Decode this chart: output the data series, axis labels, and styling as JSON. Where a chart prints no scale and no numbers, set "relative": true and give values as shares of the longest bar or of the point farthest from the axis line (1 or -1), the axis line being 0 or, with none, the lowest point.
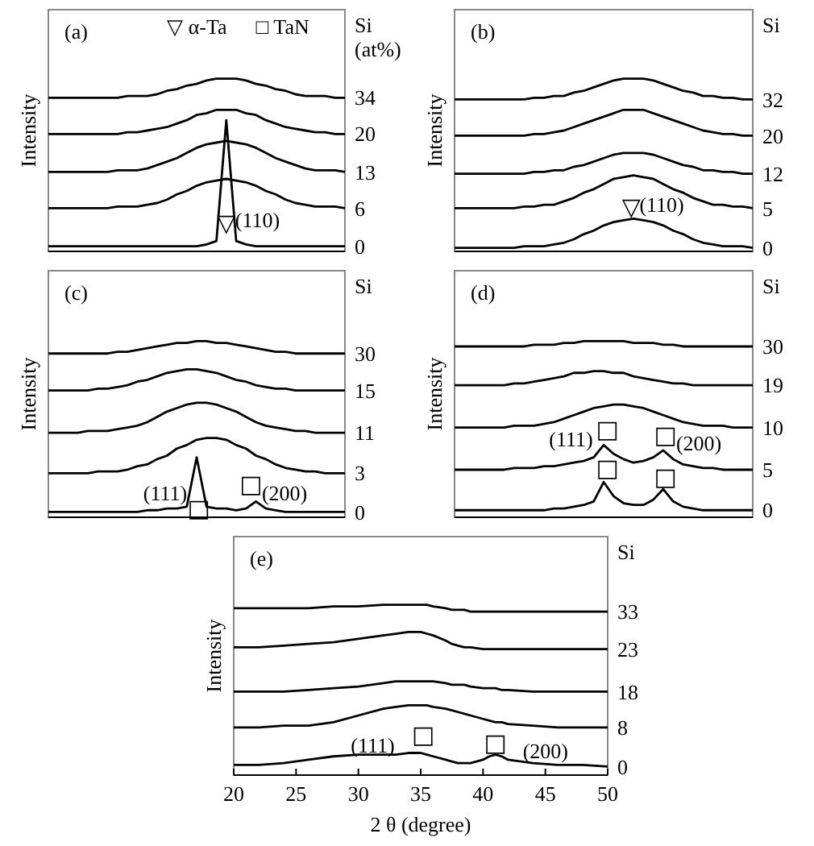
{
  "chart_data": [
    {
      "type": "line",
      "title": "(a)",
      "ylabel": "Intensity",
      "legend_title": "Si (at%)",
      "relative": true,
      "tick_labels": false,
      "categories": [
        null,
        null,
        null,
        null,
        null,
        null,
        null,
        null,
        null,
        null,
        null,
        null,
        null,
        null,
        null,
        null,
        null,
        null,
        null,
        null,
        null,
        null,
        null,
        null,
        null,
        null,
        null,
        null,
        null,
        null,
        null
      ],
      "series": [
        {
          "name": "0",
          "color": "#000000",
          "values": [
            0.03,
            0.03,
            0.03,
            0.03,
            0.03,
            0.03,
            0.03,
            0.03,
            0.03,
            0.03,
            0.03,
            0.03,
            0.03,
            0.03,
            0.03,
            0.03,
            0.04,
            0.06,
            0.76,
            0.06,
            0.04,
            0.03,
            0.03,
            0.03,
            0.03,
            0.03,
            0.03,
            0.03,
            0.03,
            0.03,
            0.03
          ]
        },
        {
          "name": "6",
          "color": "#000000",
          "values": [
            0.25,
            0.25,
            0.25,
            0.25,
            0.25,
            0.25,
            0.25,
            0.26,
            0.26,
            0.26,
            0.27,
            0.28,
            0.3,
            0.33,
            0.35,
            0.38,
            0.4,
            0.41,
            0.42,
            0.41,
            0.4,
            0.38,
            0.35,
            0.33,
            0.3,
            0.28,
            0.27,
            0.26,
            0.26,
            0.26,
            0.25
          ]
        },
        {
          "name": "13",
          "color": "#000000",
          "values": [
            0.46,
            0.46,
            0.46,
            0.46,
            0.46,
            0.46,
            0.46,
            0.47,
            0.47,
            0.47,
            0.48,
            0.5,
            0.52,
            0.54,
            0.57,
            0.6,
            0.62,
            0.63,
            0.64,
            0.63,
            0.62,
            0.6,
            0.57,
            0.54,
            0.52,
            0.5,
            0.48,
            0.47,
            0.47,
            0.47,
            0.46
          ]
        },
        {
          "name": "20",
          "color": "#000000",
          "values": [
            0.68,
            0.68,
            0.68,
            0.68,
            0.68,
            0.68,
            0.68,
            0.68,
            0.69,
            0.69,
            0.7,
            0.71,
            0.72,
            0.74,
            0.76,
            0.79,
            0.8,
            0.82,
            0.82,
            0.82,
            0.8,
            0.79,
            0.76,
            0.74,
            0.72,
            0.71,
            0.7,
            0.69,
            0.69,
            0.68,
            0.68
          ]
        },
        {
          "name": "34",
          "color": "#000000",
          "values": [
            0.89,
            0.89,
            0.89,
            0.89,
            0.89,
            0.89,
            0.89,
            0.89,
            0.9,
            0.9,
            0.9,
            0.91,
            0.93,
            0.94,
            0.96,
            0.97,
            0.99,
            1.0,
            1.0,
            1.0,
            0.99,
            0.97,
            0.96,
            0.94,
            0.93,
            0.91,
            0.9,
            0.9,
            0.9,
            0.89,
            0.89
          ]
        }
      ],
      "annotations": [
        "▽ α-Ta",
        "□ TaN",
        "▽",
        "(110)"
      ]
    },
    {
      "type": "line",
      "title": "(b)",
      "ylabel": "Intensity",
      "legend_title": "Si",
      "relative": true,
      "tick_labels": false,
      "categories": [
        null,
        null,
        null,
        null,
        null,
        null,
        null,
        null,
        null,
        null,
        null,
        null,
        null,
        null,
        null,
        null,
        null,
        null,
        null,
        null,
        null,
        null,
        null,
        null,
        null,
        null,
        null,
        null,
        null,
        null,
        null
      ],
      "series": [
        {
          "name": "0",
          "color": "#000000",
          "values": [
            0.02,
            0.02,
            0.02,
            0.02,
            0.02,
            0.02,
            0.02,
            0.03,
            0.03,
            0.03,
            0.04,
            0.05,
            0.07,
            0.1,
            0.12,
            0.15,
            0.17,
            0.18,
            0.19,
            0.18,
            0.17,
            0.15,
            0.12,
            0.1,
            0.07,
            0.05,
            0.04,
            0.03,
            0.03,
            0.03,
            0.02
          ]
        },
        {
          "name": "5",
          "color": "#000000",
          "values": [
            0.25,
            0.25,
            0.25,
            0.25,
            0.25,
            0.25,
            0.25,
            0.26,
            0.26,
            0.27,
            0.27,
            0.29,
            0.31,
            0.34,
            0.36,
            0.39,
            0.42,
            0.43,
            0.44,
            0.43,
            0.42,
            0.39,
            0.36,
            0.34,
            0.31,
            0.29,
            0.27,
            0.27,
            0.26,
            0.26,
            0.25
          ]
        },
        {
          "name": "12",
          "color": "#000000",
          "values": [
            0.45,
            0.45,
            0.45,
            0.45,
            0.45,
            0.45,
            0.45,
            0.45,
            0.46,
            0.46,
            0.47,
            0.47,
            0.49,
            0.5,
            0.52,
            0.54,
            0.56,
            0.57,
            0.57,
            0.57,
            0.56,
            0.54,
            0.52,
            0.5,
            0.49,
            0.47,
            0.47,
            0.46,
            0.46,
            0.45,
            0.45
          ]
        },
        {
          "name": "20",
          "color": "#000000",
          "values": [
            0.67,
            0.67,
            0.67,
            0.67,
            0.67,
            0.67,
            0.67,
            0.67,
            0.68,
            0.68,
            0.69,
            0.7,
            0.72,
            0.74,
            0.76,
            0.78,
            0.8,
            0.82,
            0.82,
            0.82,
            0.8,
            0.78,
            0.76,
            0.74,
            0.72,
            0.7,
            0.69,
            0.68,
            0.68,
            0.67,
            0.67
          ]
        },
        {
          "name": "32",
          "color": "#000000",
          "values": [
            0.88,
            0.88,
            0.88,
            0.88,
            0.88,
            0.88,
            0.88,
            0.88,
            0.89,
            0.89,
            0.9,
            0.9,
            0.92,
            0.93,
            0.95,
            0.97,
            0.99,
            1.0,
            1.0,
            1.0,
            0.99,
            0.97,
            0.95,
            0.93,
            0.92,
            0.9,
            0.9,
            0.89,
            0.89,
            0.88,
            0.88
          ]
        }
      ],
      "annotations": [
        "▽",
        "(110)"
      ]
    },
    {
      "type": "line",
      "title": "(c)",
      "ylabel": "Intensity",
      "legend_title": "Si",
      "relative": true,
      "tick_labels": false,
      "categories": [
        null,
        null,
        null,
        null,
        null,
        null,
        null,
        null,
        null,
        null,
        null,
        null,
        null,
        null,
        null,
        null,
        null,
        null,
        null,
        null,
        null,
        null,
        null,
        null,
        null,
        null,
        null,
        null,
        null,
        null,
        null
      ],
      "series": [
        {
          "name": "0",
          "color": "#000000",
          "values": [
            0.03,
            0.03,
            0.03,
            0.03,
            0.03,
            0.03,
            0.03,
            0.03,
            0.03,
            0.03,
            0.04,
            0.04,
            0.05,
            0.05,
            0.06,
            0.34,
            0.06,
            0.05,
            0.05,
            0.04,
            0.05,
            0.09,
            0.05,
            0.04,
            0.03,
            0.03,
            0.03,
            0.03,
            0.03,
            0.03,
            0.03
          ]
        },
        {
          "name": "3",
          "color": "#000000",
          "values": [
            0.25,
            0.25,
            0.25,
            0.25,
            0.25,
            0.26,
            0.26,
            0.26,
            0.27,
            0.29,
            0.3,
            0.33,
            0.35,
            0.39,
            0.41,
            0.44,
            0.45,
            0.45,
            0.44,
            0.41,
            0.39,
            0.35,
            0.33,
            0.3,
            0.28,
            0.27,
            0.26,
            0.26,
            0.25,
            0.25,
            0.25
          ]
        },
        {
          "name": "11",
          "color": "#000000",
          "values": [
            0.48,
            0.48,
            0.48,
            0.48,
            0.49,
            0.49,
            0.49,
            0.5,
            0.51,
            0.52,
            0.54,
            0.57,
            0.6,
            0.62,
            0.64,
            0.65,
            0.65,
            0.64,
            0.62,
            0.6,
            0.57,
            0.54,
            0.52,
            0.51,
            0.5,
            0.49,
            0.49,
            0.48,
            0.48,
            0.48,
            0.48
          ]
        },
        {
          "name": "15",
          "color": "#000000",
          "values": [
            0.72,
            0.72,
            0.72,
            0.72,
            0.72,
            0.73,
            0.73,
            0.74,
            0.75,
            0.77,
            0.78,
            0.8,
            0.82,
            0.83,
            0.84,
            0.84,
            0.83,
            0.82,
            0.8,
            0.78,
            0.77,
            0.75,
            0.74,
            0.73,
            0.73,
            0.72,
            0.72,
            0.72,
            0.72,
            0.72,
            0.72
          ]
        },
        {
          "name": "30",
          "color": "#000000",
          "values": [
            0.93,
            0.93,
            0.93,
            0.93,
            0.93,
            0.93,
            0.93,
            0.94,
            0.94,
            0.95,
            0.96,
            0.97,
            0.98,
            0.99,
            0.99,
            1.0,
            1.0,
            0.99,
            0.99,
            0.98,
            0.97,
            0.96,
            0.95,
            0.94,
            0.94,
            0.93,
            0.93,
            0.93,
            0.93,
            0.93,
            0.93
          ]
        }
      ],
      "annotations": [
        "□",
        "□",
        "(111)",
        "(200)"
      ]
    },
    {
      "type": "line",
      "title": "(d)",
      "ylabel": "Intensity",
      "legend_title": "Si",
      "relative": true,
      "tick_labels": false,
      "categories": [
        null,
        null,
        null,
        null,
        null,
        null,
        null,
        null,
        null,
        null,
        null,
        null,
        null,
        null,
        null,
        null,
        null,
        null,
        null,
        null,
        null,
        null,
        null,
        null,
        null,
        null,
        null,
        null,
        null,
        null,
        null
      ],
      "series": [
        {
          "name": "0",
          "color": "#000000",
          "values": [
            0.04,
            0.04,
            0.04,
            0.04,
            0.04,
            0.04,
            0.04,
            0.04,
            0.04,
            0.04,
            0.05,
            0.05,
            0.06,
            0.07,
            0.09,
            0.2,
            0.12,
            0.08,
            0.07,
            0.07,
            0.1,
            0.16,
            0.09,
            0.06,
            0.05,
            0.04,
            0.04,
            0.04,
            0.04,
            0.04,
            0.04
          ]
        },
        {
          "name": "5",
          "color": "#000000",
          "values": [
            0.27,
            0.27,
            0.27,
            0.27,
            0.27,
            0.27,
            0.28,
            0.28,
            0.28,
            0.29,
            0.29,
            0.3,
            0.31,
            0.32,
            0.34,
            0.41,
            0.36,
            0.33,
            0.31,
            0.32,
            0.34,
            0.38,
            0.33,
            0.3,
            0.29,
            0.28,
            0.28,
            0.27,
            0.27,
            0.27,
            0.27
          ]
        },
        {
          "name": "10",
          "color": "#000000",
          "values": [
            0.51,
            0.51,
            0.51,
            0.51,
            0.51,
            0.51,
            0.52,
            0.52,
            0.52,
            0.53,
            0.54,
            0.56,
            0.58,
            0.6,
            0.62,
            0.63,
            0.64,
            0.64,
            0.63,
            0.62,
            0.6,
            0.58,
            0.56,
            0.54,
            0.53,
            0.52,
            0.52,
            0.52,
            0.51,
            0.51,
            0.51
          ]
        },
        {
          "name": "19",
          "color": "#000000",
          "values": [
            0.75,
            0.75,
            0.75,
            0.75,
            0.75,
            0.75,
            0.76,
            0.76,
            0.77,
            0.78,
            0.79,
            0.8,
            0.82,
            0.82,
            0.83,
            0.83,
            0.82,
            0.82,
            0.8,
            0.79,
            0.78,
            0.77,
            0.76,
            0.76,
            0.75,
            0.75,
            0.75,
            0.75,
            0.75,
            0.75,
            0.75
          ]
        },
        {
          "name": "30",
          "color": "#000000",
          "values": [
            0.97,
            0.97,
            0.97,
            0.97,
            0.97,
            0.97,
            0.97,
            0.97,
            0.98,
            0.98,
            0.98,
            0.99,
            0.99,
            1.0,
            1.0,
            1.0,
            1.0,
            1.0,
            0.99,
            0.99,
            0.99,
            0.98,
            0.98,
            0.97,
            0.97,
            0.97,
            0.97,
            0.97,
            0.97,
            0.97,
            0.97
          ]
        }
      ],
      "annotations": [
        "□",
        "□",
        "□",
        "□",
        "(111)",
        "(200)"
      ]
    },
    {
      "type": "line",
      "title": "(e)",
      "ylabel": "Intensity",
      "xlabel": "2 θ (degree)",
      "legend_title": "Si",
      "relative": true,
      "xlim": [
        20,
        50
      ],
      "xticks": [
        20,
        25,
        30,
        35,
        40,
        45,
        50
      ],
      "tick_labels": "x",
      "x": [
        20,
        22,
        24,
        26,
        28,
        30,
        32,
        33,
        34,
        35,
        35.5,
        36,
        37,
        37.5,
        38,
        38.5,
        39,
        40,
        40.5,
        41,
        41.5,
        42,
        44,
        46,
        48,
        50
      ],
      "series": [
        {
          "name": "0",
          "color": "#000000",
          "values": [
            0.06,
            0.06,
            0.07,
            0.09,
            0.11,
            0.12,
            0.12,
            0.12,
            0.13,
            0.13,
            0.12,
            0.11,
            0.09,
            0.08,
            0.07,
            0.07,
            0.07,
            0.09,
            0.11,
            0.12,
            0.11,
            0.09,
            0.07,
            0.06,
            0.06,
            0.05
          ]
        },
        {
          "name": "8",
          "color": "#000000",
          "values": [
            0.28,
            0.28,
            0.29,
            0.29,
            0.31,
            0.35,
            0.39,
            0.4,
            0.41,
            0.41,
            0.41,
            0.4,
            0.39,
            0.38,
            0.37,
            0.36,
            0.35,
            0.33,
            0.32,
            0.31,
            0.31,
            0.3,
            0.29,
            0.28,
            0.28,
            0.28
          ]
        },
        {
          "name": "18",
          "color": "#000000",
          "values": [
            0.49,
            0.49,
            0.49,
            0.5,
            0.51,
            0.52,
            0.54,
            0.55,
            0.55,
            0.55,
            0.55,
            0.55,
            0.54,
            0.53,
            0.53,
            0.53,
            0.52,
            0.51,
            0.51,
            0.51,
            0.5,
            0.5,
            0.49,
            0.49,
            0.49,
            0.49
          ]
        },
        {
          "name": "23",
          "color": "#000000",
          "values": [
            0.75,
            0.75,
            0.76,
            0.77,
            0.78,
            0.8,
            0.82,
            0.83,
            0.84,
            0.84,
            0.83,
            0.82,
            0.79,
            0.77,
            0.76,
            0.75,
            0.75,
            0.74,
            0.74,
            0.74,
            0.74,
            0.74,
            0.74,
            0.74,
            0.74,
            0.74
          ]
        },
        {
          "name": "33",
          "color": "#000000",
          "values": [
            0.98,
            0.98,
            0.98,
            0.98,
            0.99,
            0.99,
            1.0,
            1.0,
            1.0,
            1.0,
            1.0,
            0.99,
            0.98,
            0.97,
            0.97,
            0.97,
            0.96,
            0.96,
            0.96,
            0.96,
            0.96,
            0.96,
            0.96,
            0.96,
            0.96,
            0.96
          ]
        }
      ],
      "annotations": [
        "□",
        "□",
        "(111)",
        "(200)"
      ]
    }
  ]
}
